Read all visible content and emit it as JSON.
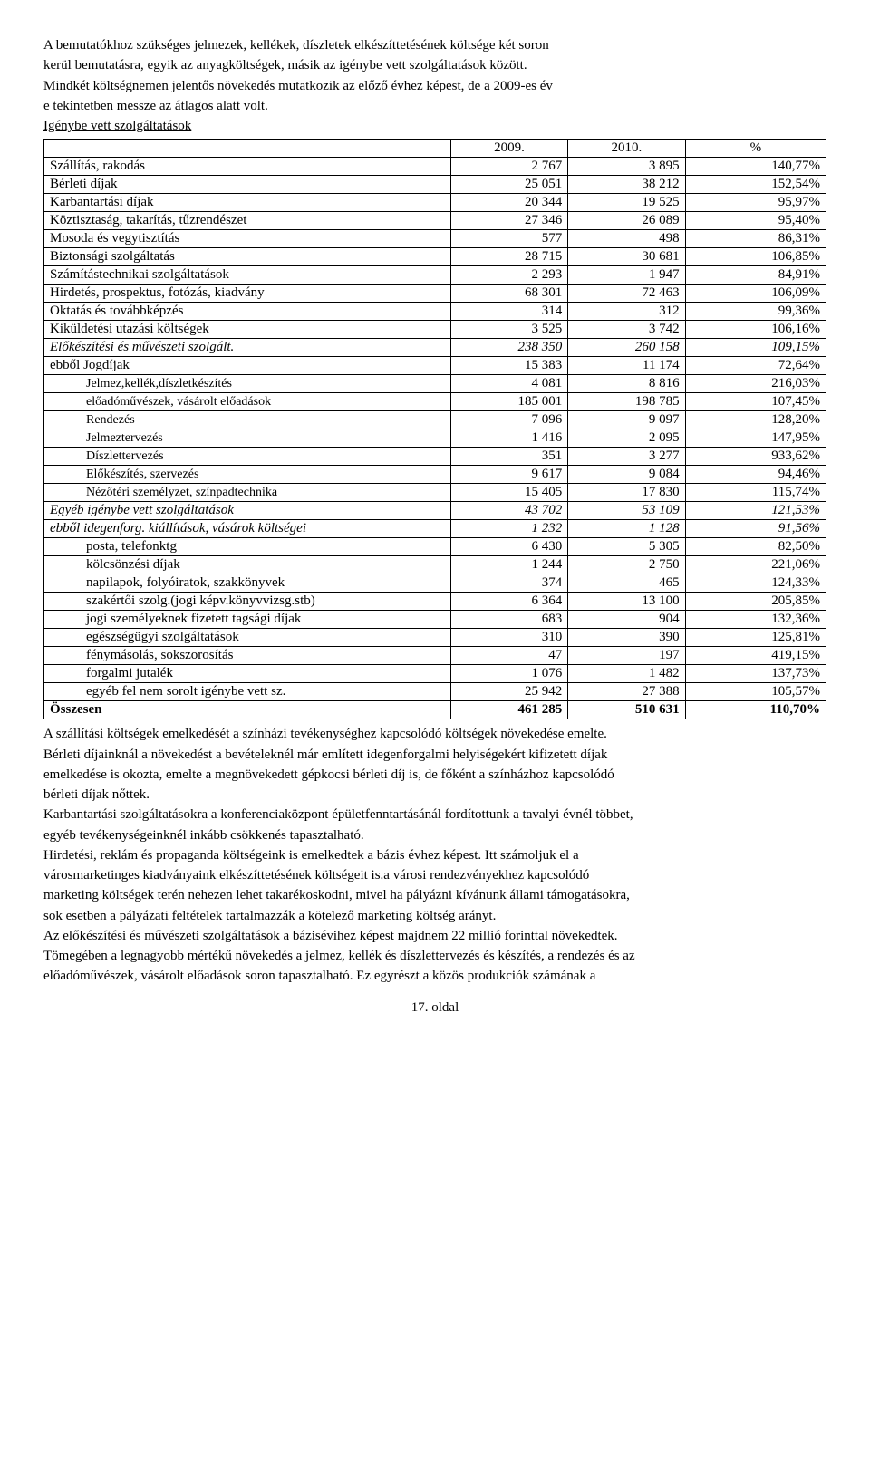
{
  "intro": {
    "p1": "A bemutatókhoz szükséges jelmezek, kellékek, díszletek elkészíttetésének költsége két soron",
    "p2": "kerül bemutatásra, egyik az anyagköltségek, másik az igénybe vett szolgáltatások között.",
    "p3": "Mindkét költségnemen jelentős növekedés mutatkozik az előző évhez képest, de a 2009-es év",
    "p4": "e tekintetben messze az átlagos alatt volt.",
    "heading": "Igénybe vett szolgáltatások"
  },
  "table": {
    "headers": {
      "c0": "",
      "c1": "2009.",
      "c2": "2010.",
      "c3": "%"
    },
    "rows": [
      {
        "label": "Szállítás, rakodás",
        "v1": "2 767",
        "v2": "3 895",
        "pct": "140,77%"
      },
      {
        "label": "Bérleti díjak",
        "v1": "25 051",
        "v2": "38 212",
        "pct": "152,54%"
      },
      {
        "label": "Karbantartási díjak",
        "v1": "20 344",
        "v2": "19 525",
        "pct": "95,97%"
      },
      {
        "label": "Köztisztaság, takarítás, tűzrendészet",
        "v1": "27 346",
        "v2": "26 089",
        "pct": "95,40%"
      },
      {
        "label": "Mosoda és vegytisztítás",
        "v1": "577",
        "v2": "498",
        "pct": "86,31%"
      },
      {
        "label": "Biztonsági szolgáltatás",
        "v1": "28 715",
        "v2": "30 681",
        "pct": "106,85%"
      },
      {
        "label": "Számítástechnikai szolgáltatások",
        "v1": "2 293",
        "v2": "1 947",
        "pct": "84,91%"
      },
      {
        "label": "Hirdetés, prospektus, fotózás, kiadvány",
        "v1": "68 301",
        "v2": "72 463",
        "pct": "106,09%"
      },
      {
        "label": "Oktatás és továbbképzés",
        "v1": "314",
        "v2": "312",
        "pct": "99,36%"
      },
      {
        "label": "Kiküldetési utazási költségek",
        "v1": "3 525",
        "v2": "3 742",
        "pct": "106,16%"
      },
      {
        "label": "Előkészítési és művészeti szolgált.",
        "v1": "238 350",
        "v2": "260 158",
        "pct": "109,15%",
        "italic": true
      },
      {
        "label": "ebből Jogdíjak",
        "v1": "15 383",
        "v2": "11 174",
        "pct": "72,64%"
      },
      {
        "label": "Jelmez,kellék,díszletkészítés",
        "v1": "4 081",
        "v2": "8 816",
        "pct": "216,03%",
        "sub": true
      },
      {
        "label": "előadóművészek, vásárolt előadások",
        "v1": "185 001",
        "v2": "198 785",
        "pct": "107,45%",
        "sub": true
      },
      {
        "label": "Rendezés",
        "v1": "7 096",
        "v2": "9 097",
        "pct": "128,20%",
        "sub": true
      },
      {
        "label": "Jelmeztervezés",
        "v1": "1 416",
        "v2": "2 095",
        "pct": "147,95%",
        "sub": true
      },
      {
        "label": "Díszlettervezés",
        "v1": "351",
        "v2": "3 277",
        "pct": "933,62%",
        "sub": true
      },
      {
        "label": "Előkészítés, szervezés",
        "v1": "9 617",
        "v2": "9 084",
        "pct": "94,46%",
        "sub": true
      },
      {
        "label": "Nézőtéri személyzet, színpadtechnika",
        "v1": "15 405",
        "v2": "17 830",
        "pct": "115,74%",
        "sub": true
      },
      {
        "label": "Egyéb igénybe vett szolgáltatások",
        "v1": "43 702",
        "v2": "53 109",
        "pct": "121,53%",
        "italic": true
      },
      {
        "label": "ebből   idegenforg. kiállítások, vásárok költségei",
        "v1": "1 232",
        "v2": "1 128",
        "pct": "91,56%",
        "italic": true
      },
      {
        "label": "posta, telefonktg",
        "v1": "6 430",
        "v2": "5 305",
        "pct": "82,50%",
        "sub2": true
      },
      {
        "label": "kölcsönzési díjak",
        "v1": "1 244",
        "v2": "2 750",
        "pct": "221,06%",
        "sub2": true
      },
      {
        "label": "napilapok, folyóiratok, szakkönyvek",
        "v1": "374",
        "v2": "465",
        "pct": "124,33%",
        "sub2": true
      },
      {
        "label": "szakértői szolg.(jogi képv.könyvvizsg.stb)",
        "v1": "6 364",
        "v2": "13 100",
        "pct": "205,85%",
        "sub2": true
      },
      {
        "label": "jogi személyeknek fizetett tagsági díjak",
        "v1": "683",
        "v2": "904",
        "pct": "132,36%",
        "sub2": true
      },
      {
        "label": "egészségügyi szolgáltatások",
        "v1": "310",
        "v2": "390",
        "pct": "125,81%",
        "sub2": true
      },
      {
        "label": "fénymásolás, sokszorosítás",
        "v1": "47",
        "v2": "197",
        "pct": "419,15%",
        "sub2": true
      },
      {
        "label": "forgalmi jutalék",
        "v1": "1 076",
        "v2": "1 482",
        "pct": "137,73%",
        "sub2": true
      },
      {
        "label": "egyéb fel nem sorolt igénybe vett sz.",
        "v1": "25 942",
        "v2": "27 388",
        "pct": "105,57%",
        "sub2": true
      },
      {
        "label": "Összesen",
        "v1": "461 285",
        "v2": "510 631",
        "pct": "110,70%",
        "bold": true
      }
    ]
  },
  "outro": {
    "p1": "A szállítási költségek emelkedését a színházi tevékenységhez kapcsolódó költségek növekedése emelte.",
    "p2": "Bérleti díjainknál a növekedést a bevételeknél már említett idegenforgalmi helyiségekért kifizetett díjak",
    "p3": "emelkedése is okozta, emelte a megnövekedett gépkocsi bérleti díj is, de főként a színházhoz kapcsolódó",
    "p4": "bérleti díjak nőttek.",
    "p5": "Karbantartási szolgáltatásokra  a konferenciaközpont épületfenntartásánál fordítottunk a tavalyi évnél többet,",
    "p6": "egyéb tevékenységeinknél inkább csökkenés tapasztalható.",
    "p7": "Hirdetési, reklám és propaganda költségeink is emelkedtek a bázis évhez képest.  Itt számoljuk el a",
    "p8": "városmarketinges kiadványaink elkészíttetésének költségeit is.a városi rendezvényekhez kapcsolódó",
    "p9": "marketing költségek terén nehezen lehet takarékoskodni, mivel ha pályázni kívánunk állami támogatásokra,",
    "p10": "sok esetben a pályázati feltételek tartalmazzák a kötelező marketing költség arányt.",
    "p11": "Az előkészítési és művészeti szolgáltatások a bázisévihez képest majdnem 22 millió forinttal növekedtek.",
    "p12": "Tömegében a legnagyobb mértékű növekedés a jelmez, kellék és díszlettervezés és készítés, a rendezés és az",
    "p13": "előadóművészek, vásárolt előadások soron tapasztalható. Ez egyrészt a közös produkciók számának a"
  },
  "footer": "17. oldal"
}
